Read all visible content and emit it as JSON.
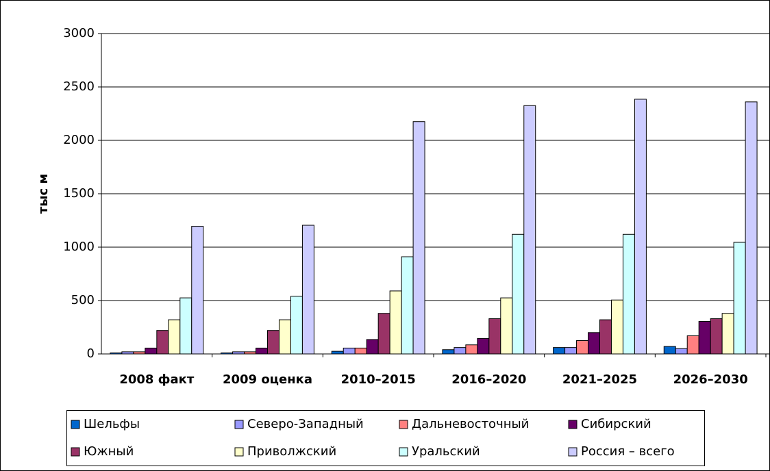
{
  "chart_data": {
    "type": "bar",
    "y_label": "тыс м",
    "categories": [
      "2008 факт",
      "2009 оценка",
      "2010–2015",
      "2016–2020",
      "2021–2025",
      "2026–2030"
    ],
    "series": [
      {
        "name": "Шельфы",
        "color": "#0066cc",
        "values": [
          10,
          10,
          25,
          40,
          60,
          70
        ]
      },
      {
        "name": "Северо-Западный",
        "color": "#9999ff",
        "values": [
          20,
          20,
          55,
          60,
          60,
          50
        ]
      },
      {
        "name": "Дальневосточный",
        "color": "#ff8080",
        "values": [
          20,
          20,
          55,
          85,
          125,
          170
        ]
      },
      {
        "name": "Сибирский",
        "color": "#660066",
        "values": [
          55,
          55,
          135,
          145,
          200,
          305
        ]
      },
      {
        "name": "Южный",
        "color": "#993366",
        "values": [
          220,
          220,
          380,
          330,
          320,
          330
        ]
      },
      {
        "name": "Приволжский",
        "color": "#ffffcc",
        "values": [
          320,
          320,
          590,
          525,
          505,
          380
        ]
      },
      {
        "name": "Уральский",
        "color": "#ccffff",
        "values": [
          525,
          540,
          910,
          1120,
          1120,
          1045
        ]
      },
      {
        "name": "Россия – всего",
        "color": "#ccccff",
        "values": [
          1195,
          1205,
          2175,
          2325,
          2385,
          2360
        ]
      }
    ],
    "ylim": [
      0,
      3000
    ],
    "yticks": [
      0,
      500,
      1000,
      1500,
      2000,
      2500,
      3000
    ],
    "grid": true
  }
}
